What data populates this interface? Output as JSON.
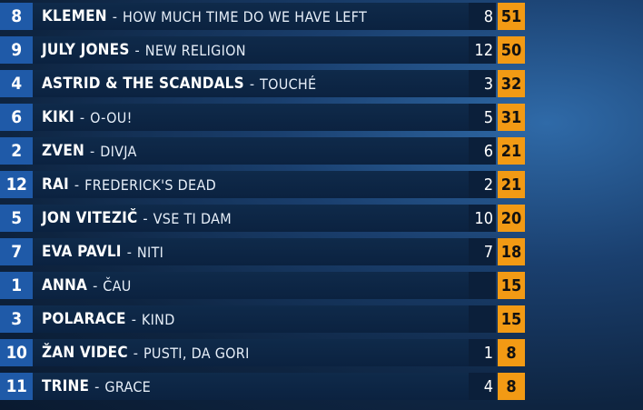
{
  "rows": [
    {
      "position": "8",
      "artist": "KLEMEN",
      "song": "HOW MUCH TIME DO WE HAVE LEFT",
      "points": "8",
      "total": "51"
    },
    {
      "position": "9",
      "artist": "JULY JONES",
      "song": "NEW RELIGION",
      "points": "12",
      "total": "50"
    },
    {
      "position": "4",
      "artist": "ASTRID & THE SCANDALS",
      "song": "TOUCHÉ",
      "points": "3",
      "total": "32"
    },
    {
      "position": "6",
      "artist": "KIKI",
      "song": "O-OU!",
      "points": "5",
      "total": "31"
    },
    {
      "position": "2",
      "artist": "ZVEN",
      "song": "DIVJA",
      "points": "6",
      "total": "21"
    },
    {
      "position": "12",
      "artist": "RAI",
      "song": "FREDERICK'S DEAD",
      "points": "2",
      "total": "21"
    },
    {
      "position": "5",
      "artist": "JON VITEZIČ",
      "song": "VSE TI DAM",
      "points": "10",
      "total": "20"
    },
    {
      "position": "7",
      "artist": "EVA PAVLI",
      "song": "NITI",
      "points": "7",
      "total": "18"
    },
    {
      "position": "1",
      "artist": "ANNA",
      "song": "ČAU",
      "points": "",
      "total": "15"
    },
    {
      "position": "3",
      "artist": "POLARACE",
      "song": "KIND",
      "points": "",
      "total": "15"
    },
    {
      "position": "10",
      "artist": "ŽAN VIDEC",
      "song": "PUSTI, DA GORI",
      "points": "1",
      "total": "8"
    },
    {
      "position": "11",
      "artist": "TRINE",
      "song": "GRACE",
      "points": "4",
      "total": "8"
    }
  ],
  "separator": "-",
  "colors": {
    "number_bg": "#1f5aa8",
    "row_bg": "#0f2a4a",
    "total_bg": "#f29a14"
  }
}
